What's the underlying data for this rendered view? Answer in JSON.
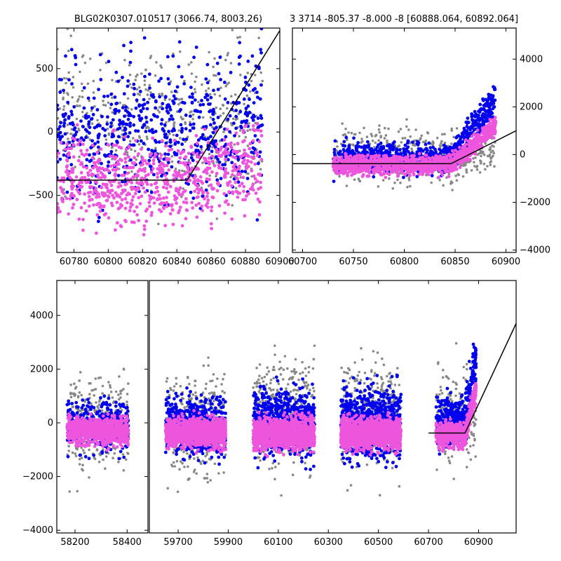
{
  "colors": {
    "grey": "#888888",
    "blue": "#0000ee",
    "pink": "#ee55dd",
    "model": "#000000",
    "frame": "#000000"
  },
  "chart_data": [
    {
      "type": "scatter",
      "name": "panel-top-left",
      "title": "BLG02K0307.010517 (3066.74, 8003.26)",
      "xlim": [
        60770,
        60900
      ],
      "ylim": [
        -950,
        820
      ],
      "x_ticks": [
        60780,
        60800,
        60820,
        60840,
        60860,
        60880,
        60900
      ],
      "x_tick_labels": [
        "60780",
        "60800",
        "60820",
        "60840",
        "60860",
        "60880",
        "60900"
      ],
      "y_ticks": [
        -500,
        0,
        500
      ],
      "y_tick_labels": [
        "−500",
        "0",
        "500"
      ],
      "y_axis_side": "left",
      "model_line": {
        "x": [
          60770,
          60846,
          60900
        ],
        "y": [
          -380,
          -380,
          800
        ]
      },
      "series": [
        {
          "name": "grey",
          "color": "#888888"
        },
        {
          "name": "blue",
          "color": "#0000ee"
        },
        {
          "name": "pink",
          "color": "#ee55dd"
        }
      ],
      "point_clusters": [
        {
          "series": "grey",
          "count": 450,
          "x_range": [
            60770,
            60890
          ],
          "y_center": 100,
          "y_spread": 450,
          "seed": 11
        },
        {
          "series": "blue",
          "count": 650,
          "x_range": [
            60770,
            60890
          ],
          "y_center": 0,
          "y_spread": 420,
          "seed": 12,
          "trend": 2.2
        },
        {
          "series": "pink",
          "count": 750,
          "x_range": [
            60770,
            60890
          ],
          "y_center": -380,
          "y_spread": 260,
          "seed": 13,
          "trend": 3.5
        }
      ]
    },
    {
      "type": "scatter",
      "name": "panel-top-right",
      "title": "3 3714 -805.37 -8.000 -8 [60888.064, 60892.064]",
      "xlim": [
        60690,
        60910
      ],
      "ylim": [
        -4100,
        5300
      ],
      "x_ticks": [
        60700,
        60750,
        60800,
        60850,
        60900
      ],
      "x_tick_labels": [
        "60700",
        "60750",
        "60800",
        "60850",
        "60900"
      ],
      "y_ticks": [
        -4000,
        -2000,
        0,
        2000,
        4000
      ],
      "y_tick_labels": [
        "−4000",
        "−2000",
        "0",
        "2000",
        "4000"
      ],
      "y_axis_side": "right",
      "model_line": {
        "x": [
          60690,
          60846,
          60910
        ],
        "y": [
          -380,
          -380,
          1000
        ]
      },
      "series": [
        {
          "name": "grey",
          "color": "#888888"
        },
        {
          "name": "blue",
          "color": "#0000ee"
        },
        {
          "name": "pink",
          "color": "#ee55dd"
        }
      ],
      "point_clusters": [
        {
          "series": "grey",
          "count": 450,
          "x_range": [
            60730,
            60890
          ],
          "y_center": 0,
          "y_spread": 900,
          "seed": 21
        },
        {
          "series": "blue",
          "count": 900,
          "x_range": [
            60730,
            60890
          ],
          "y_center": -150,
          "y_spread": 500,
          "seed": 22,
          "trend": 9
        },
        {
          "series": "pink",
          "count": 1200,
          "x_range": [
            60730,
            60890
          ],
          "y_center": -450,
          "y_spread": 300,
          "seed": 23,
          "trend": 6
        }
      ]
    },
    {
      "type": "scatter",
      "name": "panel-bottom-season-1",
      "xlim": [
        58130,
        58480
      ],
      "ylim": [
        -4100,
        5300
      ],
      "x_ticks": [
        58200,
        58400
      ],
      "x_tick_labels": [
        "58200",
        "58400"
      ],
      "y_ticks": [
        -4000,
        -2000,
        0,
        2000,
        4000
      ],
      "y_tick_labels": [
        "−4000",
        "−2000",
        "0",
        "2000",
        "4000"
      ],
      "y_axis_side": "left",
      "point_clusters": [
        {
          "series": "grey",
          "count": 300,
          "x_range": [
            58170,
            58405
          ],
          "y_center": 0,
          "y_spread": 1400,
          "seed": 31
        },
        {
          "series": "blue",
          "count": 350,
          "x_range": [
            58170,
            58405
          ],
          "y_center": -100,
          "y_spread": 700,
          "seed": 32
        },
        {
          "series": "pink",
          "count": 800,
          "x_range": [
            58170,
            58405
          ],
          "y_center": -300,
          "y_spread": 380,
          "seed": 33
        }
      ]
    },
    {
      "type": "scatter",
      "name": "panel-bottom-seasons-2-5",
      "xlim": [
        59585,
        61050
      ],
      "ylim": [
        -4100,
        5300
      ],
      "x_ticks": [
        59700,
        59900,
        60100,
        60300,
        60500,
        60700,
        60900
      ],
      "x_tick_labels": [
        "59700",
        "59900",
        "60100",
        "60300",
        "60500",
        "60700",
        "60900"
      ],
      "y_axis_side": "none",
      "model_line": {
        "x": [
          60700,
          60846,
          61050
        ],
        "y": [
          -380,
          -380,
          3700
        ]
      },
      "point_clusters": [
        {
          "series": "grey",
          "count": 350,
          "x_range": [
            59650,
            59890
          ],
          "y_center": 0,
          "y_spread": 1500,
          "seed": 41
        },
        {
          "series": "blue",
          "count": 600,
          "x_range": [
            59650,
            59890
          ],
          "y_center": -100,
          "y_spread": 850,
          "seed": 42
        },
        {
          "series": "pink",
          "count": 1100,
          "x_range": [
            59650,
            59890
          ],
          "y_center": -350,
          "y_spread": 420,
          "seed": 43
        },
        {
          "series": "grey",
          "count": 350,
          "x_range": [
            60000,
            60245
          ],
          "y_center": 300,
          "y_spread": 1600,
          "seed": 51
        },
        {
          "series": "blue",
          "count": 700,
          "x_range": [
            60000,
            60245
          ],
          "y_center": 0,
          "y_spread": 950,
          "seed": 52
        },
        {
          "series": "pink",
          "count": 1200,
          "x_range": [
            60000,
            60245
          ],
          "y_center": -400,
          "y_spread": 450,
          "seed": 53
        },
        {
          "series": "grey",
          "count": 350,
          "x_range": [
            60350,
            60590
          ],
          "y_center": 300,
          "y_spread": 1500,
          "seed": 61
        },
        {
          "series": "blue",
          "count": 750,
          "x_range": [
            60350,
            60590
          ],
          "y_center": 0,
          "y_spread": 1000,
          "seed": 62
        },
        {
          "series": "pink",
          "count": 1200,
          "x_range": [
            60350,
            60590
          ],
          "y_center": -400,
          "y_spread": 450,
          "seed": 63
        },
        {
          "series": "grey",
          "count": 200,
          "x_range": [
            60730,
            60890
          ],
          "y_center": 300,
          "y_spread": 1400,
          "seed": 71
        },
        {
          "series": "blue",
          "count": 450,
          "x_range": [
            60730,
            60890
          ],
          "y_center": 0,
          "y_spread": 700,
          "seed": 72,
          "trend": 9
        },
        {
          "series": "pink",
          "count": 600,
          "x_range": [
            60730,
            60890
          ],
          "y_center": -450,
          "y_spread": 350,
          "seed": 73,
          "trend": 6
        }
      ]
    }
  ]
}
